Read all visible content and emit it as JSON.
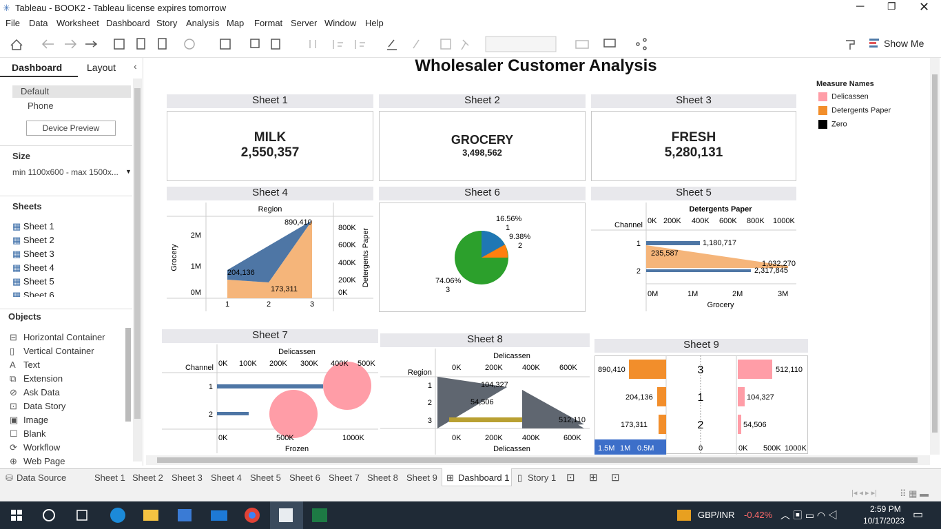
{
  "window": {
    "title": "Tableau - BOOK2 - Tableau license expires tomorrow"
  },
  "menu": [
    "File",
    "Data",
    "Worksheet",
    "Dashboard",
    "Story",
    "Analysis",
    "Map",
    "Format",
    "Server",
    "Window",
    "Help"
  ],
  "toolbar": {
    "show_me": "Show Me"
  },
  "left_panel": {
    "tab_dashboard": "Dashboard",
    "tab_layout": "Layout",
    "device_default": "Default",
    "device_phone": "Phone",
    "device_preview": "Device Preview",
    "size_label": "Size",
    "size_value": "min 1100x600 - max 1500x...",
    "sheets_label": "Sheets",
    "sheets": [
      "Sheet 1",
      "Sheet 2",
      "Sheet 3",
      "Sheet 4",
      "Sheet 5",
      "Sheet 6"
    ],
    "objects_label": "Objects",
    "objects": [
      "Horizontal Container",
      "Vertical Container",
      "Text",
      "Extension",
      "Ask Data",
      "Data Story",
      "Image",
      "Blank",
      "Workflow",
      "Web Page"
    ]
  },
  "dashboard": {
    "title": "Wholesaler Customer Analysis",
    "legend": {
      "title": "Measure Names",
      "items": [
        {
          "label": "Delicassen",
          "color": "#ff9da7"
        },
        {
          "label": "Detergents Paper",
          "color": "#f28e2b"
        },
        {
          "label": "Zero",
          "color": "#000000"
        }
      ]
    },
    "sheet1": {
      "header": "Sheet 1",
      "label": "MILK",
      "value": "2,550,357"
    },
    "sheet2": {
      "header": "Sheet 2",
      "label": "GROCERY",
      "value": "3,498,562"
    },
    "sheet3": {
      "header": "Sheet 3",
      "label": "FRESH",
      "value": "5,280,131"
    },
    "sheet4": {
      "header": "Sheet 4",
      "top_title": "Region",
      "y_left": "Grocery",
      "y_right": "Detergents Paper",
      "left_ticks": [
        "2M",
        "1M",
        "0M"
      ],
      "right_ticks": [
        "800K",
        "600K",
        "400K",
        "200K",
        "0K"
      ],
      "x_ticks": [
        "1",
        "2",
        "3"
      ],
      "labels": [
        "890,410",
        "204,136",
        "173,311"
      ]
    },
    "sheet5": {
      "header": "Sheet 5",
      "top_title": "Detergents Paper",
      "top_ticks": [
        "0K",
        "200K",
        "400K",
        "600K",
        "800K",
        "1000K"
      ],
      "row_title": "Channel",
      "rows": [
        "1",
        "2"
      ],
      "bottom_ticks": [
        "0M",
        "1M",
        "2M",
        "3M"
      ],
      "bottom_title": "Grocery",
      "labels": [
        "1,180,717",
        "235,587",
        "1,032,270",
        "2,317,845"
      ]
    },
    "sheet6": {
      "header": "Sheet 6",
      "labels": [
        "16.56%",
        "1",
        "9.38%",
        "2",
        "74.06%",
        "3"
      ]
    },
    "sheet7": {
      "header": "Sheet 7",
      "top_title": "Delicassen",
      "top_ticks": [
        "0K",
        "100K",
        "200K",
        "300K",
        "400K",
        "500K"
      ],
      "row_title": "Channel",
      "rows": [
        "1",
        "2"
      ],
      "bottom_ticks": [
        "0K",
        "500K",
        "1000K"
      ],
      "bottom_title": "Frozen"
    },
    "sheet8": {
      "header": "Sheet 8",
      "top_title": "Delicassen",
      "top_ticks": [
        "0K",
        "200K",
        "400K",
        "600K"
      ],
      "row_title": "Region",
      "rows": [
        "1",
        "2",
        "3"
      ],
      "bottom_ticks": [
        "0K",
        "200K",
        "400K",
        "600K"
      ],
      "bottom_title": "Delicassen",
      "labels": [
        "104,327",
        "54,506",
        "512,110"
      ]
    },
    "sheet9": {
      "header": "Sheet 9",
      "left_labels": [
        "890,410",
        "204,136",
        "173,311"
      ],
      "mid_labels": [
        "3",
        "1",
        "2"
      ],
      "right_labels": [
        "512,110",
        "104,327",
        "54,506"
      ],
      "left_axis": [
        "1.5M",
        "1M",
        "0.5M"
      ],
      "mid_axis": "0",
      "right_axis": [
        "0K",
        "500K",
        "1000K"
      ]
    }
  },
  "tabs": [
    "Data Source",
    "Sheet 1",
    "Sheet 2",
    "Sheet 3",
    "Sheet 4",
    "Sheet 5",
    "Sheet 6",
    "Sheet 7",
    "Sheet 8",
    "Sheet 9",
    "Dashboard 1",
    "Story 1"
  ],
  "taskbar": {
    "ticker": "GBP/INR",
    "change": "-0.42%",
    "time": "2:59 PM",
    "date": "10/17/2023"
  }
}
